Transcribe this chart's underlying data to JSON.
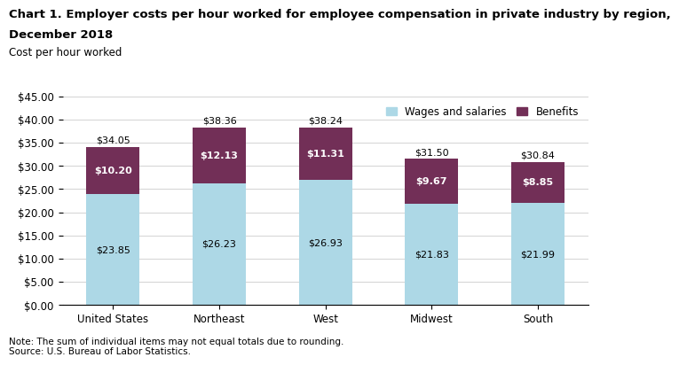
{
  "title_line1": "Chart 1. Employer costs per hour worked for employee compensation in private industry by region,",
  "title_line2": "December 2018",
  "ylabel": "Cost per hour worked",
  "categories": [
    "United States",
    "Northeast",
    "West",
    "Midwest",
    "South"
  ],
  "wages": [
    23.85,
    26.23,
    26.93,
    21.83,
    21.99
  ],
  "benefits": [
    10.2,
    12.13,
    11.31,
    9.67,
    8.85
  ],
  "totals": [
    34.05,
    38.36,
    38.24,
    31.5,
    30.84
  ],
  "wages_color": "#add8e6",
  "benefits_color": "#722f57",
  "ylim": [
    0,
    45
  ],
  "yticks": [
    0,
    5,
    10,
    15,
    20,
    25,
    30,
    35,
    40,
    45
  ],
  "ytick_labels": [
    "$0.00",
    "$5.00",
    "$10.00",
    "$15.00",
    "$20.00",
    "$25.00",
    "$30.00",
    "$35.00",
    "$40.00",
    "$45.00"
  ],
  "legend_wages": "Wages and salaries",
  "legend_benefits": "Benefits",
  "note": "Note: The sum of individual items may not equal totals due to rounding.\nSource: U.S. Bureau of Labor Statistics.",
  "title_fontsize": 9.5,
  "axis_label_fontsize": 8.5,
  "tick_fontsize": 8.5,
  "bar_label_fontsize": 8,
  "legend_fontsize": 8.5,
  "note_fontsize": 7.5
}
